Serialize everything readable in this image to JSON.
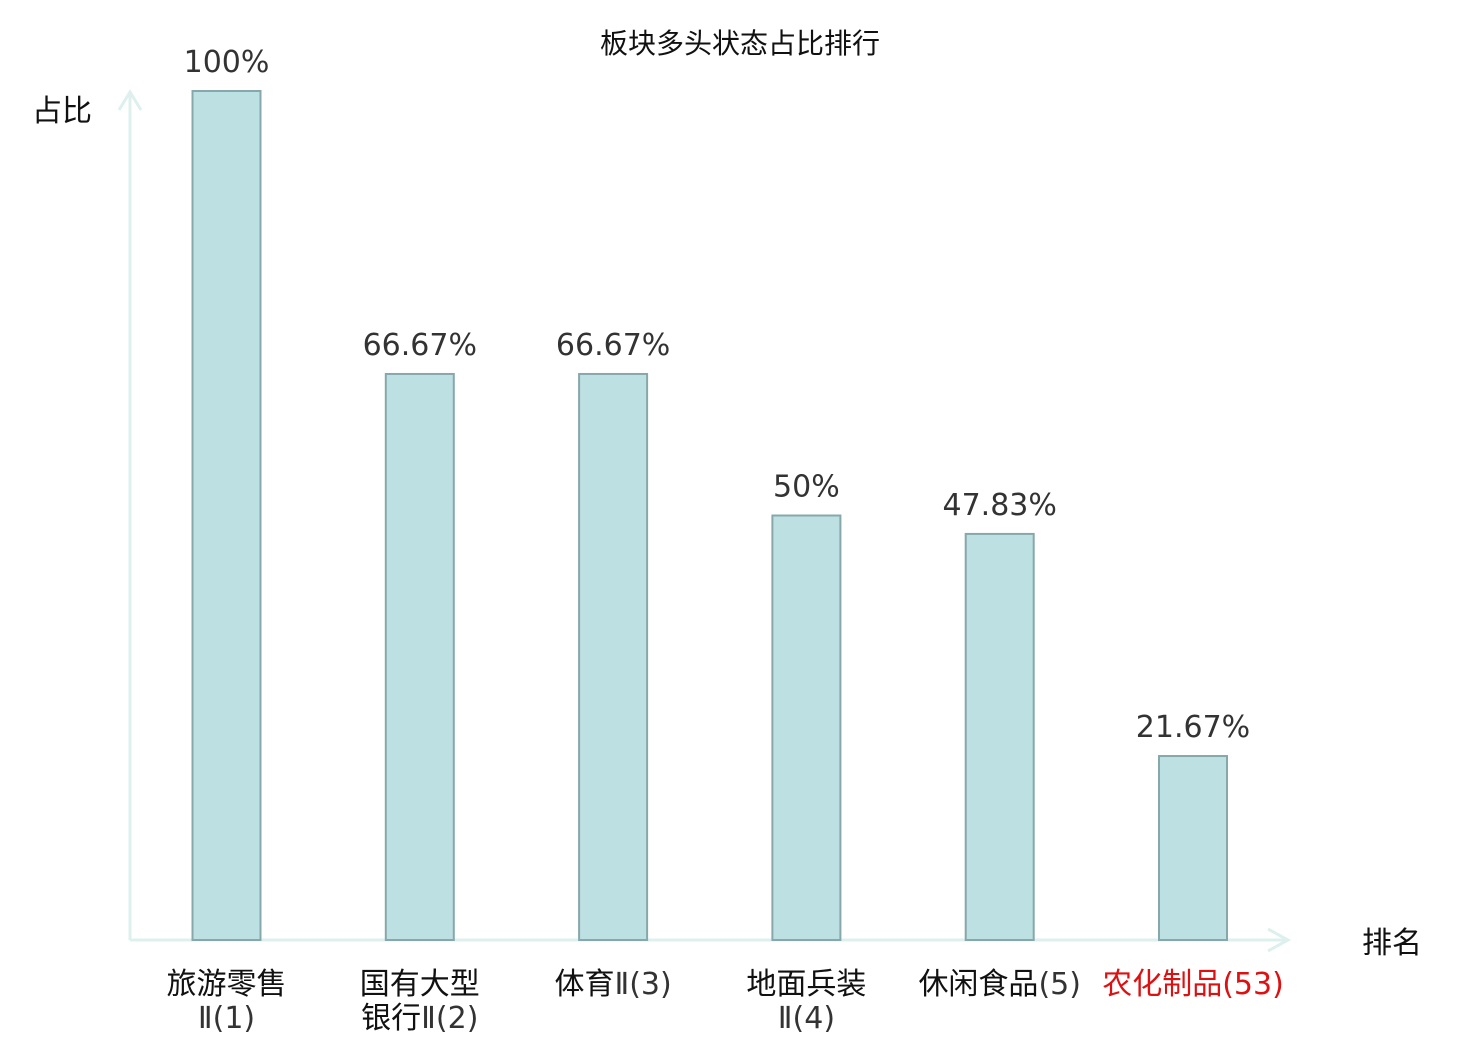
{
  "chart_data": {
    "type": "bar",
    "title": "板块多头状态占比排行",
    "ylabel": "占比",
    "xlabel": "排名",
    "ylim": [
      0,
      100
    ],
    "categories": [
      {
        "name_lines": [
          "旅游零售"
        ],
        "suffix_lines": [
          "Ⅱ(1)"
        ],
        "highlight": false
      },
      {
        "name_lines": [
          "国有大型",
          "银行"
        ],
        "suffix_lines": [
          "",
          "Ⅱ(2)"
        ],
        "highlight": false
      },
      {
        "name_lines": [
          "体育"
        ],
        "suffix_lines": [
          "Ⅱ(3)"
        ],
        "highlight": false
      },
      {
        "name_lines": [
          "地面兵装"
        ],
        "suffix_lines": [
          "Ⅱ(4)"
        ],
        "highlight": false
      },
      {
        "name_lines": [
          "休闲食品"
        ],
        "suffix_lines": [
          "(5)"
        ],
        "highlight": false
      },
      {
        "name_lines": [
          "农化制品"
        ],
        "suffix_lines": [
          "(53)"
        ],
        "highlight": true
      }
    ],
    "values": [
      100,
      66.67,
      66.67,
      50,
      47.83,
      21.67
    ],
    "value_labels": [
      "100%",
      "66.67%",
      "66.67%",
      "50%",
      "47.83%",
      "21.67%"
    ],
    "colors": {
      "bar_fill": "#bde0e3",
      "bar_stroke": "#86a8ab",
      "axis": "#ddf0ee",
      "label": "#333333",
      "highlight": "#dd1111",
      "suffix": "#333333"
    }
  }
}
